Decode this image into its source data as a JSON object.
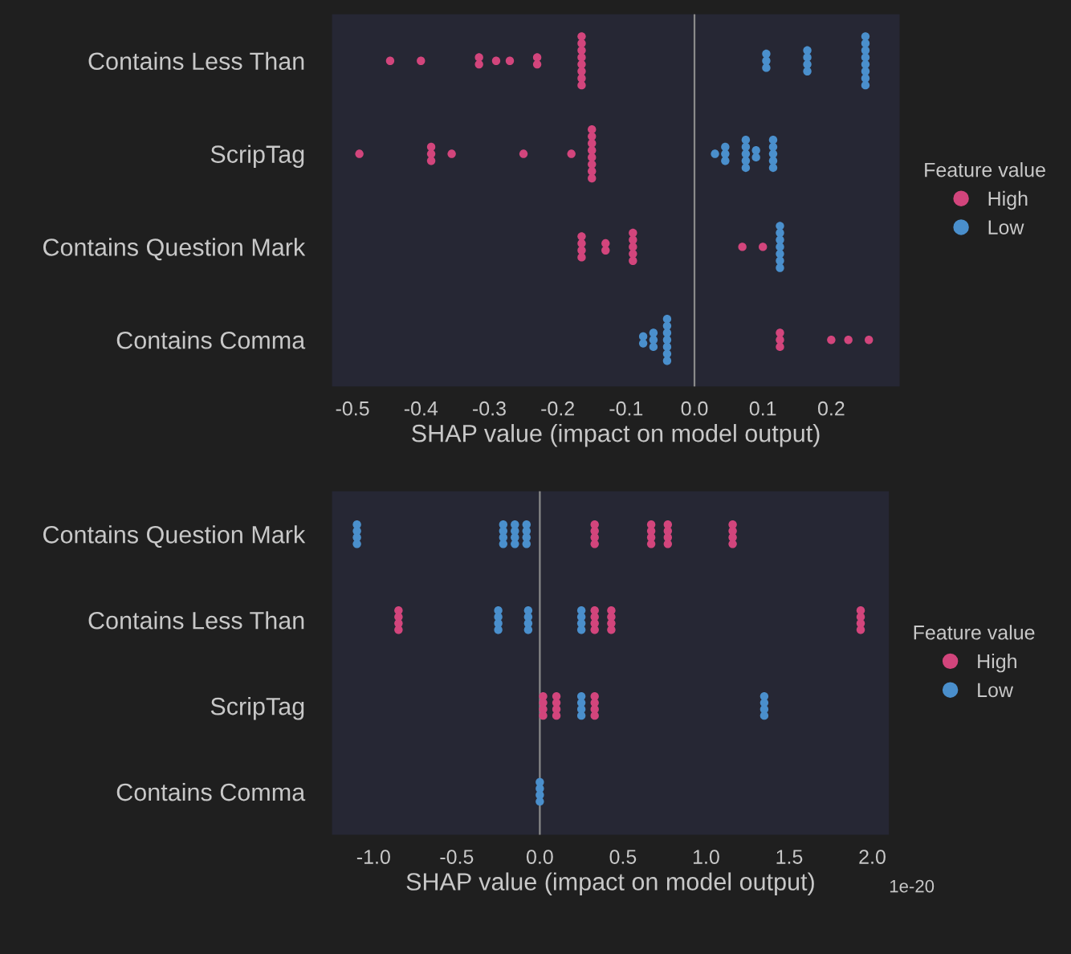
{
  "chart_data": [
    {
      "type": "scatter",
      "orientation": "horizontal",
      "categories": [
        "Contains Less Than",
        "ScripTag",
        "Contains Question Mark",
        "Contains Comma"
      ],
      "series": [
        {
          "name": "High",
          "color": "#d2457c",
          "x": [
            "Contains Less Than",
            "Contains Less Than",
            "Contains Less Than",
            "Contains Less Than",
            "Contains Less Than",
            "Contains Less Than",
            "Contains Less Than",
            "Contains Less Than",
            "Contains Less Than",
            "Contains Less Than",
            "Contains Less Than",
            "Contains Less Than",
            "Contains Less Than",
            "Contains Less Than",
            "Contains Less Than",
            "Contains Less Than",
            "ScripTag",
            "ScripTag",
            "ScripTag",
            "ScripTag",
            "ScripTag",
            "ScripTag",
            "ScripTag",
            "ScripTag",
            "ScripTag",
            "ScripTag",
            "ScripTag",
            "ScripTag",
            "ScripTag",
            "ScripTag",
            "ScripTag",
            "Contains Question Mark",
            "Contains Question Mark",
            "Contains Question Mark",
            "Contains Question Mark",
            "Contains Question Mark",
            "Contains Question Mark",
            "Contains Question Mark",
            "Contains Question Mark",
            "Contains Question Mark",
            "Contains Question Mark",
            "Contains Question Mark",
            "Contains Question Mark",
            "Contains Question Mark",
            "Contains Comma",
            "Contains Comma",
            "Contains Comma",
            "Contains Comma",
            "Contains Comma",
            "Contains Comma"
          ],
          "values": [
            -0.445,
            -0.4,
            -0.315,
            -0.315,
            -0.29,
            -0.27,
            -0.23,
            -0.23,
            -0.165,
            -0.165,
            -0.165,
            -0.165,
            -0.165,
            -0.165,
            -0.165,
            -0.165,
            -0.49,
            -0.385,
            -0.385,
            -0.385,
            -0.355,
            -0.25,
            -0.18,
            -0.15,
            -0.15,
            -0.15,
            -0.15,
            -0.15,
            -0.15,
            -0.15,
            -0.15,
            -0.165,
            -0.165,
            -0.165,
            -0.165,
            -0.13,
            -0.13,
            -0.09,
            -0.09,
            -0.09,
            -0.09,
            -0.09,
            0.07,
            0.1,
            0.125,
            0.125,
            0.125,
            0.2,
            0.225,
            0.255
          ]
        },
        {
          "name": "Low",
          "color": "#4a8fcc",
          "x": [
            "Contains Less Than",
            "Contains Less Than",
            "Contains Less Than",
            "Contains Less Than",
            "Contains Less Than",
            "Contains Less Than",
            "Contains Less Than",
            "Contains Less Than",
            "Contains Less Than",
            "Contains Less Than",
            "Contains Less Than",
            "Contains Less Than",
            "Contains Less Than",
            "Contains Less Than",
            "Contains Less Than",
            "ScripTag",
            "ScripTag",
            "ScripTag",
            "ScripTag",
            "ScripTag",
            "ScripTag",
            "ScripTag",
            "ScripTag",
            "ScripTag",
            "ScripTag",
            "ScripTag",
            "ScripTag",
            "ScripTag",
            "ScripTag",
            "ScripTag",
            "ScripTag",
            "Contains Question Mark",
            "Contains Question Mark",
            "Contains Question Mark",
            "Contains Question Mark",
            "Contains Question Mark",
            "Contains Question Mark",
            "Contains Question Mark",
            "Contains Comma",
            "Contains Comma",
            "Contains Comma",
            "Contains Comma",
            "Contains Comma",
            "Contains Comma",
            "Contains Comma",
            "Contains Comma",
            "Contains Comma",
            "Contains Comma",
            "Contains Comma",
            "Contains Comma"
          ],
          "values": [
            0.105,
            0.105,
            0.105,
            0.165,
            0.165,
            0.165,
            0.165,
            0.25,
            0.25,
            0.25,
            0.25,
            0.25,
            0.25,
            0.25,
            0.25,
            0.03,
            0.045,
            0.045,
            0.045,
            0.075,
            0.075,
            0.075,
            0.075,
            0.075,
            0.09,
            0.09,
            0.115,
            0.115,
            0.115,
            0.115,
            0.115,
            0.125,
            0.125,
            0.125,
            0.125,
            0.125,
            0.125,
            0.125,
            -0.075,
            -0.075,
            -0.06,
            -0.06,
            -0.06,
            -0.04,
            -0.04,
            -0.04,
            -0.04,
            -0.04,
            -0.04,
            -0.04
          ]
        }
      ],
      "xlim": [
        -0.53,
        0.3
      ],
      "xticks": [
        -0.5,
        -0.4,
        -0.3,
        -0.2,
        -0.1,
        {
          "value": 0,
          "label": "0.0"
        },
        0.1,
        0.2
      ],
      "xlabel": "SHAP value (impact on model output)",
      "legend_title": "Feature value",
      "ref_lines": [
        {
          "axis": "x",
          "value": 0,
          "color": "#8a8a8a"
        }
      ],
      "marker": "circle",
      "legend": "right",
      "grid": false
    },
    {
      "type": "scatter",
      "orientation": "horizontal",
      "categories": [
        "Contains Question Mark",
        "Contains Less Than",
        "ScripTag",
        "Contains Comma"
      ],
      "series": [
        {
          "name": "High",
          "color": "#d2457c",
          "x": [
            "Contains Question Mark",
            "Contains Question Mark",
            "Contains Question Mark",
            "Contains Question Mark",
            "Contains Question Mark",
            "Contains Question Mark",
            "Contains Question Mark",
            "Contains Question Mark",
            "Contains Question Mark",
            "Contains Question Mark",
            "Contains Question Mark",
            "Contains Question Mark",
            "Contains Question Mark",
            "Contains Question Mark",
            "Contains Question Mark",
            "Contains Question Mark",
            "Contains Less Than",
            "Contains Less Than",
            "Contains Less Than",
            "Contains Less Than",
            "Contains Less Than",
            "Contains Less Than",
            "Contains Less Than",
            "Contains Less Than",
            "Contains Less Than",
            "Contains Less Than",
            "Contains Less Than",
            "Contains Less Than",
            "Contains Less Than",
            "Contains Less Than",
            "Contains Less Than",
            "Contains Less Than",
            "ScripTag",
            "ScripTag",
            "ScripTag",
            "ScripTag",
            "ScripTag",
            "ScripTag",
            "ScripTag",
            "ScripTag",
            "ScripTag",
            "ScripTag",
            "ScripTag",
            "ScripTag"
          ],
          "values": [
            0.33,
            0.33,
            0.33,
            0.33,
            0.67,
            0.67,
            0.67,
            0.67,
            0.77,
            0.77,
            0.77,
            0.77,
            1.16,
            1.16,
            1.16,
            1.16,
            -0.85,
            -0.85,
            -0.85,
            -0.85,
            0.33,
            0.33,
            0.33,
            0.33,
            0.43,
            0.43,
            0.43,
            0.43,
            1.93,
            1.93,
            1.93,
            1.93,
            0.02,
            0.02,
            0.02,
            0.02,
            0.1,
            0.1,
            0.1,
            0.1,
            0.33,
            0.33,
            0.33,
            0.33
          ]
        },
        {
          "name": "Low",
          "color": "#4a8fcc",
          "x": [
            "Contains Question Mark",
            "Contains Question Mark",
            "Contains Question Mark",
            "Contains Question Mark",
            "Contains Question Mark",
            "Contains Question Mark",
            "Contains Question Mark",
            "Contains Question Mark",
            "Contains Question Mark",
            "Contains Question Mark",
            "Contains Question Mark",
            "Contains Question Mark",
            "Contains Question Mark",
            "Contains Question Mark",
            "Contains Question Mark",
            "Contains Question Mark",
            "Contains Less Than",
            "Contains Less Than",
            "Contains Less Than",
            "Contains Less Than",
            "Contains Less Than",
            "Contains Less Than",
            "Contains Less Than",
            "Contains Less Than",
            "Contains Less Than",
            "Contains Less Than",
            "Contains Less Than",
            "Contains Less Than",
            "ScripTag",
            "ScripTag",
            "ScripTag",
            "ScripTag",
            "ScripTag",
            "ScripTag",
            "ScripTag",
            "ScripTag",
            "Contains Comma",
            "Contains Comma",
            "Contains Comma",
            "Contains Comma"
          ],
          "values": [
            -1.1,
            -1.1,
            -1.1,
            -1.1,
            -0.22,
            -0.22,
            -0.22,
            -0.22,
            -0.15,
            -0.15,
            -0.15,
            -0.15,
            -0.08,
            -0.08,
            -0.08,
            -0.08,
            -0.25,
            -0.25,
            -0.25,
            -0.25,
            -0.07,
            -0.07,
            -0.07,
            -0.07,
            0.25,
            0.25,
            0.25,
            0.25,
            0.25,
            0.25,
            0.25,
            0.25,
            1.35,
            1.35,
            1.35,
            1.35,
            0.0,
            0.0,
            0.0,
            0.0
          ]
        }
      ],
      "xlim": [
        -1.25,
        2.1
      ],
      "xticks": [
        {
          "value": -1,
          "label": "-1.0"
        },
        -0.5,
        {
          "value": 0,
          "label": "0.0"
        },
        0.5,
        {
          "value": 1,
          "label": "1.0"
        },
        1.5,
        {
          "value": 2,
          "label": "2.0"
        }
      ],
      "xlabel": "SHAP value (impact on model output)",
      "legend_title": "Feature value",
      "annotations": [
        "1e-20"
      ],
      "ref_lines": [
        {
          "axis": "x",
          "value": 0,
          "color": "#8a8a8a"
        }
      ],
      "marker": "circle",
      "legend": "right",
      "grid": false
    }
  ]
}
